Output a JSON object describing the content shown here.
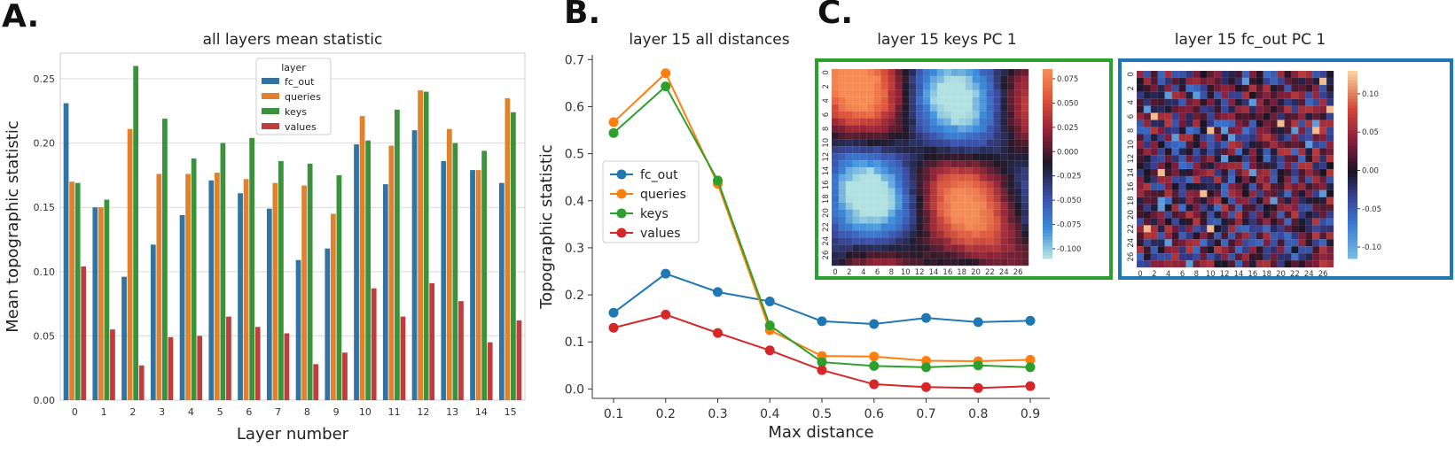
{
  "panel_letters": [
    "A.",
    "B.",
    "C."
  ],
  "chart_data": [
    {
      "type": "bar",
      "title": "all layers mean statistic",
      "xlabel": "Layer number",
      "ylabel": "Mean topographic statistic",
      "ylim": [
        0,
        0.27
      ],
      "yticks": [
        "0.00",
        "0.05",
        "0.10",
        "0.15",
        "0.20",
        "0.25"
      ],
      "grid": true,
      "legend_title": "layer",
      "legend_position": "top-center",
      "categories": [
        "0",
        "1",
        "2",
        "3",
        "4",
        "5",
        "6",
        "7",
        "8",
        "9",
        "10",
        "11",
        "12",
        "13",
        "14",
        "15"
      ],
      "series": [
        {
          "name": "fc_out",
          "color": "#3274a1",
          "values": [
            0.231,
            0.15,
            0.096,
            0.121,
            0.144,
            0.171,
            0.161,
            0.149,
            0.109,
            0.118,
            0.199,
            0.168,
            0.21,
            0.186,
            0.179,
            0.169
          ]
        },
        {
          "name": "queries",
          "color": "#e1812c",
          "values": [
            0.17,
            0.15,
            0.211,
            0.176,
            0.176,
            0.177,
            0.172,
            0.169,
            0.167,
            0.145,
            0.221,
            0.198,
            0.241,
            0.211,
            0.179,
            0.235
          ]
        },
        {
          "name": "keys",
          "color": "#3a923a",
          "values": [
            0.169,
            0.156,
            0.26,
            0.219,
            0.188,
            0.2,
            0.204,
            0.186,
            0.184,
            0.175,
            0.202,
            0.226,
            0.24,
            0.2,
            0.194,
            0.224
          ]
        },
        {
          "name": "values",
          "color": "#c03d3e",
          "values": [
            0.104,
            0.055,
            0.027,
            0.049,
            0.05,
            0.065,
            0.057,
            0.052,
            0.028,
            0.037,
            0.087,
            0.065,
            0.091,
            0.077,
            0.045,
            0.062
          ]
        }
      ]
    },
    {
      "type": "line",
      "title": "layer 15 all distances",
      "xlabel": "Max distance",
      "ylabel": "Topographic statistic",
      "x": [
        0.1,
        0.2,
        0.3,
        0.4,
        0.5,
        0.6,
        0.7,
        0.8,
        0.9
      ],
      "xticks": [
        "0.1",
        "0.2",
        "0.3",
        "0.4",
        "0.5",
        "0.6",
        "0.7",
        "0.8",
        "0.9"
      ],
      "ylim": [
        -0.02,
        0.71
      ],
      "yticks": [
        "0.0",
        "0.1",
        "0.2",
        "0.3",
        "0.4",
        "0.5",
        "0.6",
        "0.7"
      ],
      "legend_position": "center-left",
      "series": [
        {
          "name": "fc_out",
          "color": "#1f77b4",
          "values": [
            0.162,
            0.245,
            0.206,
            0.186,
            0.144,
            0.138,
            0.151,
            0.142,
            0.145
          ]
        },
        {
          "name": "queries",
          "color": "#ff7f0e",
          "values": [
            0.567,
            0.671,
            0.436,
            0.125,
            0.07,
            0.069,
            0.06,
            0.059,
            0.062
          ]
        },
        {
          "name": "keys",
          "color": "#2ca02c",
          "values": [
            0.544,
            0.643,
            0.443,
            0.135,
            0.057,
            0.049,
            0.046,
            0.05,
            0.046
          ]
        },
        {
          "name": "values",
          "color": "#d62728",
          "values": [
            0.13,
            0.158,
            0.119,
            0.082,
            0.04,
            0.01,
            0.004,
            0.002,
            0.006
          ]
        }
      ]
    },
    {
      "type": "heatmap",
      "title": "layer 15 keys PC 1",
      "frame_color": "#2ca02c",
      "grid_size": 28,
      "tick_labels": [
        "0",
        "2",
        "4",
        "6",
        "8",
        "10",
        "12",
        "14",
        "16",
        "18",
        "20",
        "22",
        "24",
        "26"
      ],
      "colorbar_ticks": [
        "0.075",
        "0.050",
        "0.025",
        "0.000",
        "-0.025",
        "-0.050",
        "-0.075",
        "-0.100"
      ],
      "colorbar_range": [
        -0.11,
        0.085
      ],
      "pattern": "smooth"
    },
    {
      "type": "heatmap",
      "title": "layer 15 fc_out PC 1",
      "frame_color": "#1f77b4",
      "grid_size": 28,
      "tick_labels": [
        "0",
        "2",
        "4",
        "6",
        "8",
        "10",
        "12",
        "14",
        "16",
        "18",
        "20",
        "22",
        "24",
        "26"
      ],
      "colorbar_ticks": [
        "0.10",
        "0.05",
        "0.00",
        "-0.05",
        "-0.10"
      ],
      "colorbar_range": [
        -0.115,
        0.13
      ],
      "pattern": "noisy"
    }
  ]
}
